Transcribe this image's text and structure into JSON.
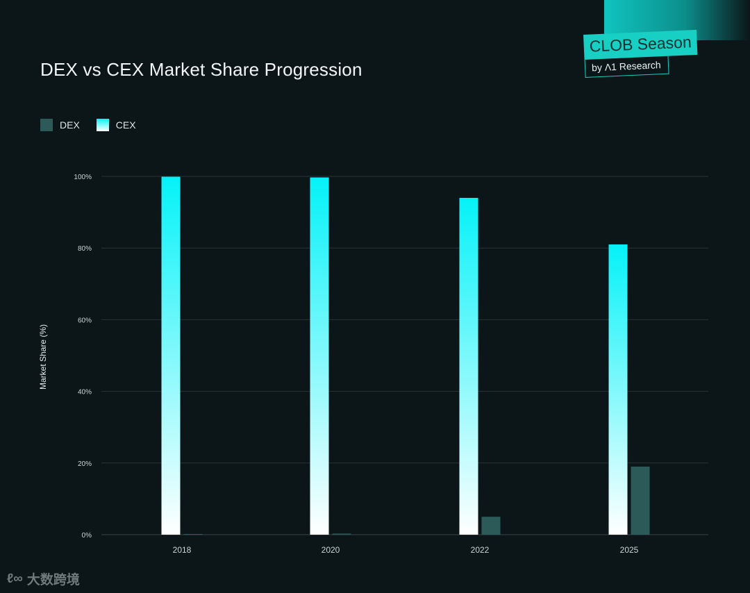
{
  "title": "DEX vs CEX Market Share Progression",
  "brand": {
    "name": "CLOB Season",
    "byline": "by Λ1 Research"
  },
  "watermark": {
    "glyph": "ℓ∞",
    "text": "大数跨境"
  },
  "colors": {
    "background": "#0c1518",
    "dex": "#2c5a59",
    "cex_top": "#04f2f8",
    "cex_bottom": "#ffffff",
    "grid": "#2a3436",
    "brand": "#18cfc4"
  },
  "chart_data": {
    "type": "bar",
    "title": "DEX vs CEX Market Share Progression",
    "xlabel": "",
    "ylabel": "Market Share (%)",
    "ylim": [
      0,
      100
    ],
    "yticks": [
      0,
      20,
      40,
      60,
      80,
      100
    ],
    "ytick_labels": [
      "0%",
      "20%",
      "40%",
      "60%",
      "80%",
      "100%"
    ],
    "grid": true,
    "legend_position": "top-left",
    "categories": [
      "2018",
      "2020",
      "2022",
      "2025"
    ],
    "series": [
      {
        "name": "DEX",
        "values": [
          0.1,
          0.3,
          5,
          19
        ]
      },
      {
        "name": "CEX",
        "values": [
          99.9,
          99.7,
          94,
          81
        ]
      }
    ]
  }
}
